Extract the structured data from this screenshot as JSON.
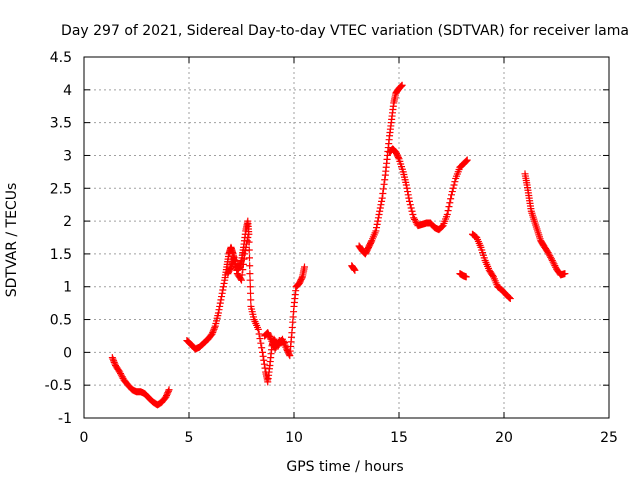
{
  "chart_data": {
    "type": "scatter",
    "title": "Day 297 of 2021, Sidereal Day-to-day VTEC variation (SDTVAR) for receiver lama",
    "xlabel": "GPS time / hours",
    "ylabel": "SDTVAR / TECUs",
    "xlim": [
      0,
      25
    ],
    "ylim": [
      -1,
      4.5
    ],
    "xticks": [
      0,
      5,
      10,
      15,
      20,
      25
    ],
    "yticks": [
      -1,
      -0.5,
      0,
      0.5,
      1,
      1.5,
      2,
      2.5,
      3,
      3.5,
      4,
      4.5
    ],
    "grid": true,
    "marker": "+",
    "color": "#ff0000",
    "series": [
      {
        "segments": [
          [
            [
              1.35,
              -0.08
            ],
            [
              1.5,
              -0.2
            ],
            [
              1.7,
              -0.3
            ],
            [
              1.9,
              -0.42
            ],
            [
              2.1,
              -0.5
            ],
            [
              2.3,
              -0.57
            ],
            [
              2.5,
              -0.6
            ],
            [
              2.7,
              -0.6
            ],
            [
              2.9,
              -0.63
            ],
            [
              3.1,
              -0.7
            ],
            [
              3.3,
              -0.76
            ],
            [
              3.5,
              -0.8
            ],
            [
              3.7,
              -0.76
            ],
            [
              3.9,
              -0.68
            ],
            [
              4.05,
              -0.57
            ]
          ],
          [
            [
              4.9,
              0.18
            ],
            [
              5.1,
              0.12
            ],
            [
              5.3,
              0.05
            ],
            [
              5.5,
              0.08
            ],
            [
              5.7,
              0.14
            ],
            [
              5.9,
              0.2
            ],
            [
              6.1,
              0.28
            ],
            [
              6.25,
              0.4
            ],
            [
              6.4,
              0.6
            ],
            [
              6.55,
              0.85
            ],
            [
              6.7,
              1.1
            ],
            [
              6.8,
              1.3
            ],
            [
              6.9,
              1.5
            ],
            [
              7.0,
              1.6
            ],
            [
              7.1,
              1.5
            ],
            [
              7.2,
              1.35
            ],
            [
              7.3,
              1.25
            ],
            [
              7.4,
              1.3
            ],
            [
              7.5,
              1.4
            ],
            [
              7.6,
              1.6
            ],
            [
              7.7,
              1.85
            ],
            [
              7.8,
              2.0
            ],
            [
              7.85,
              1.8
            ],
            [
              7.9,
              1.2
            ],
            [
              7.95,
              0.7
            ],
            [
              8.1,
              0.5
            ],
            [
              8.3,
              0.35
            ],
            [
              8.5,
              0.0
            ],
            [
              8.65,
              -0.3
            ],
            [
              8.75,
              -0.45
            ],
            [
              8.85,
              -0.2
            ],
            [
              8.95,
              0.1
            ],
            [
              9.05,
              0.2
            ],
            [
              9.25,
              0.1
            ],
            [
              9.45,
              0.2
            ],
            [
              9.65,
              0.05
            ],
            [
              9.8,
              -0.05
            ],
            [
              9.9,
              0.3
            ],
            [
              10.0,
              0.7
            ],
            [
              10.1,
              1.0
            ],
            [
              10.25,
              1.05
            ],
            [
              10.4,
              1.15
            ],
            [
              10.5,
              1.3
            ]
          ],
          [
            [
              6.85,
              1.2
            ],
            [
              7.0,
              1.3
            ],
            [
              7.15,
              1.45
            ],
            [
              7.3,
              1.2
            ],
            [
              7.5,
              1.1
            ],
            [
              7.65,
              1.5
            ],
            [
              7.8,
              1.75
            ]
          ],
          [
            [
              8.6,
              0.25
            ],
            [
              8.75,
              0.3
            ],
            [
              8.9,
              0.2
            ],
            [
              9.1,
              0.05
            ],
            [
              9.3,
              0.18
            ],
            [
              9.55,
              0.15
            ]
          ],
          [
            [
              12.75,
              1.32
            ],
            [
              12.9,
              1.25
            ]
          ],
          [
            [
              13.1,
              1.62
            ],
            [
              13.25,
              1.55
            ],
            [
              13.4,
              1.5
            ],
            [
              13.55,
              1.6
            ],
            [
              13.7,
              1.7
            ],
            [
              13.9,
              1.85
            ],
            [
              14.05,
              2.1
            ],
            [
              14.2,
              2.35
            ],
            [
              14.35,
              2.7
            ],
            [
              14.45,
              3.0
            ],
            [
              14.55,
              3.3
            ],
            [
              14.65,
              3.55
            ],
            [
              14.75,
              3.8
            ],
            [
              14.85,
              3.95
            ],
            [
              15.0,
              4.02
            ],
            [
              15.15,
              4.07
            ]
          ],
          [
            [
              14.55,
              3.05
            ],
            [
              14.7,
              3.1
            ],
            [
              14.85,
              3.05
            ],
            [
              15.0,
              2.95
            ],
            [
              15.2,
              2.75
            ],
            [
              15.35,
              2.55
            ],
            [
              15.5,
              2.3
            ],
            [
              15.7,
              2.05
            ],
            [
              15.9,
              1.93
            ],
            [
              16.1,
              1.95
            ],
            [
              16.3,
              1.97
            ],
            [
              16.5,
              1.97
            ],
            [
              16.7,
              1.9
            ],
            [
              16.9,
              1.87
            ],
            [
              17.1,
              1.93
            ],
            [
              17.3,
              2.1
            ],
            [
              17.5,
              2.4
            ],
            [
              17.7,
              2.65
            ],
            [
              17.9,
              2.82
            ],
            [
              18.1,
              2.88
            ],
            [
              18.25,
              2.93
            ]
          ],
          [
            [
              17.9,
              1.2
            ],
            [
              18.05,
              1.17
            ],
            [
              18.2,
              1.15
            ]
          ],
          [
            [
              18.5,
              1.8
            ],
            [
              18.7,
              1.75
            ],
            [
              18.9,
              1.6
            ],
            [
              19.1,
              1.4
            ],
            [
              19.3,
              1.25
            ],
            [
              19.5,
              1.15
            ],
            [
              19.7,
              1.0
            ],
            [
              19.9,
              0.95
            ],
            [
              20.1,
              0.88
            ],
            [
              20.3,
              0.82
            ]
          ],
          [
            [
              21.0,
              2.72
            ],
            [
              21.1,
              2.55
            ],
            [
              21.2,
              2.35
            ],
            [
              21.3,
              2.15
            ],
            [
              21.45,
              2.0
            ],
            [
              21.6,
              1.85
            ],
            [
              21.75,
              1.7
            ],
            [
              21.9,
              1.62
            ],
            [
              22.1,
              1.52
            ],
            [
              22.3,
              1.4
            ],
            [
              22.5,
              1.27
            ],
            [
              22.7,
              1.18
            ],
            [
              22.9,
              1.2
            ]
          ]
        ]
      }
    ]
  }
}
